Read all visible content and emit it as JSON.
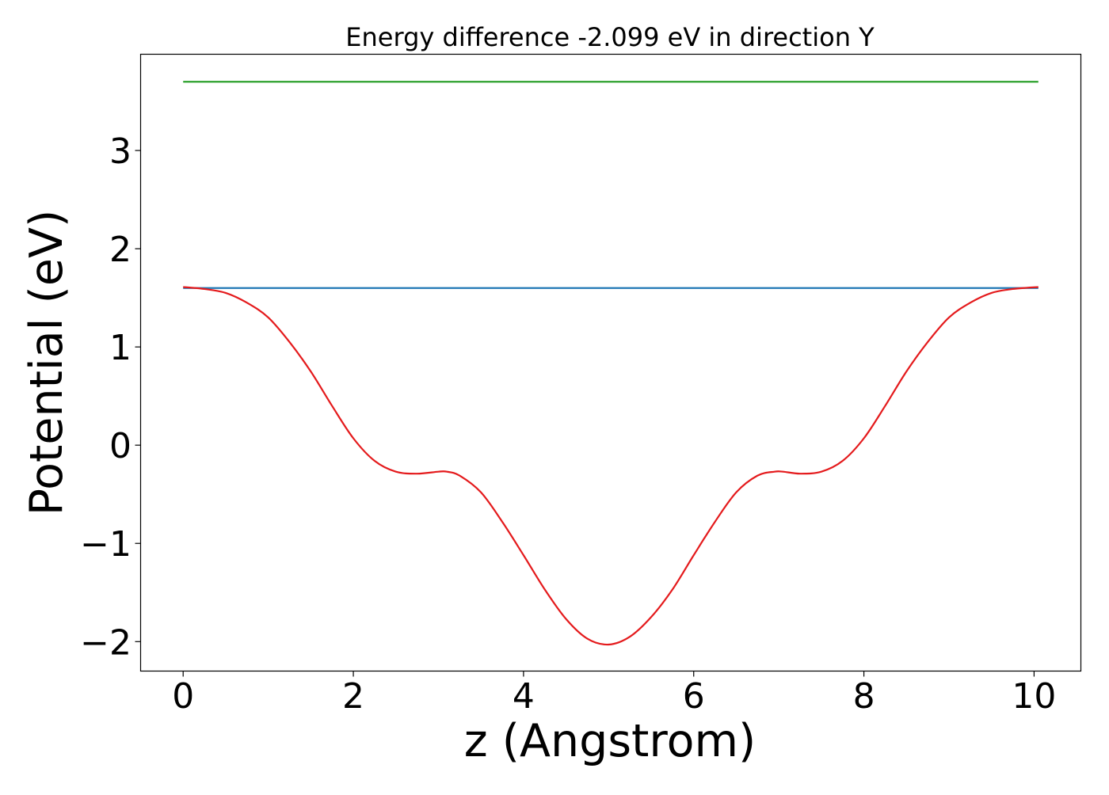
{
  "chart_data": {
    "type": "line",
    "title": "Energy difference -2.099 eV in direction Y",
    "xlabel": "z (Angstrom)",
    "ylabel": "Potential (eV)",
    "xlim": [
      -0.5,
      10.55
    ],
    "ylim": [
      -2.3,
      3.98
    ],
    "x_ticks": [
      0,
      2,
      4,
      6,
      8,
      10
    ],
    "x_tick_labels": [
      "0",
      "2",
      "4",
      "6",
      "8",
      "10"
    ],
    "y_ticks": [
      -2,
      -1,
      0,
      1,
      2,
      3
    ],
    "y_tick_labels": [
      "−2",
      "−1",
      "0",
      "1",
      "2",
      "3"
    ],
    "grid": false,
    "legend": "none",
    "series": [
      {
        "color": "#2ca02c",
        "style": "line",
        "x": [
          0,
          10.05
        ],
        "y": [
          3.7,
          3.7
        ]
      },
      {
        "color": "#1f77b4",
        "style": "line",
        "x": [
          0,
          10.05
        ],
        "y": [
          1.6,
          1.6
        ]
      },
      {
        "color": "#e41a1c",
        "style": "smooth",
        "x": [
          0,
          0.25,
          0.5,
          0.75,
          1.0,
          1.25,
          1.5,
          1.75,
          2.0,
          2.25,
          2.5,
          2.75,
          3.0,
          3.1,
          3.25,
          3.5,
          3.75,
          4.0,
          4.25,
          4.5,
          4.75,
          5.0,
          5.25,
          5.5,
          5.75,
          6.0,
          6.25,
          6.5,
          6.75,
          6.95,
          7.05,
          7.25,
          7.5,
          7.75,
          8.0,
          8.25,
          8.5,
          8.75,
          9.0,
          9.25,
          9.5,
          9.75,
          10.05
        ],
        "y": [
          1.61,
          1.59,
          1.55,
          1.45,
          1.3,
          1.05,
          0.75,
          0.4,
          0.07,
          -0.16,
          -0.27,
          -0.29,
          -0.27,
          -0.27,
          -0.31,
          -0.48,
          -0.78,
          -1.12,
          -1.47,
          -1.77,
          -1.97,
          -2.03,
          -1.95,
          -1.75,
          -1.47,
          -1.12,
          -0.78,
          -0.48,
          -0.31,
          -0.27,
          -0.27,
          -0.29,
          -0.27,
          -0.16,
          0.07,
          0.4,
          0.75,
          1.05,
          1.3,
          1.45,
          1.55,
          1.59,
          1.61
        ]
      }
    ]
  }
}
